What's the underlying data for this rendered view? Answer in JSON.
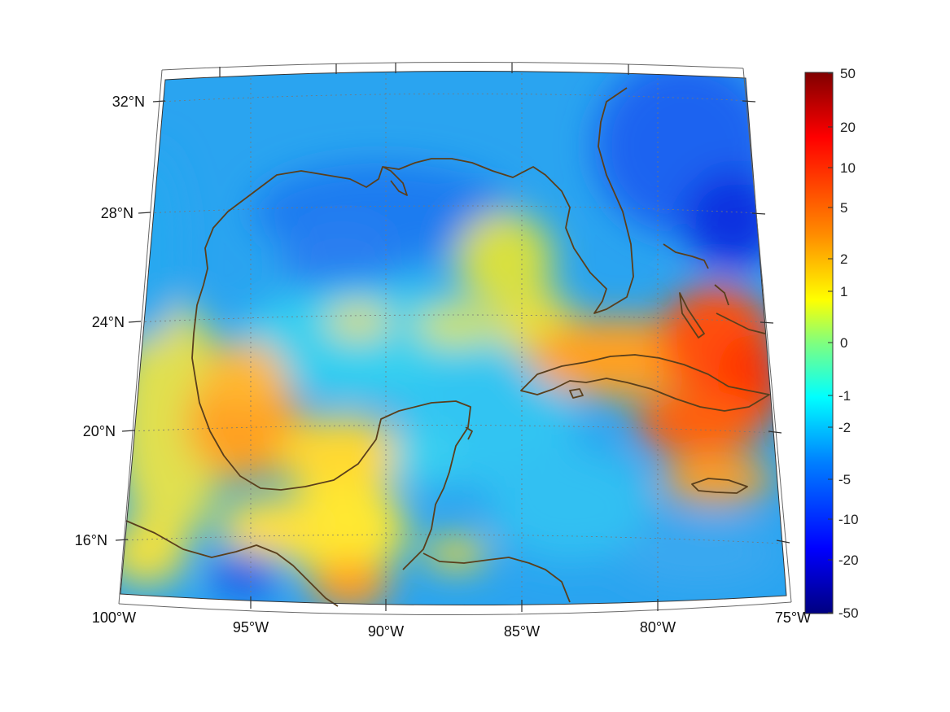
{
  "map": {
    "lat_labels": [
      "32°N",
      "28°N",
      "24°N",
      "20°N",
      "16°N"
    ],
    "lon_labels": [
      "100°W",
      "95°W",
      "90°W",
      "85°W",
      "80°W",
      "75°W"
    ],
    "coastline_color": "#5a3f1c",
    "grid_style": "dotted"
  },
  "colorbar": {
    "colormap": "jet",
    "tick_labels": [
      "50",
      "20",
      "10",
      "5",
      "2",
      "1",
      "0",
      "-1",
      "-2",
      "-5",
      "-10",
      "-20",
      "-50"
    ]
  }
}
